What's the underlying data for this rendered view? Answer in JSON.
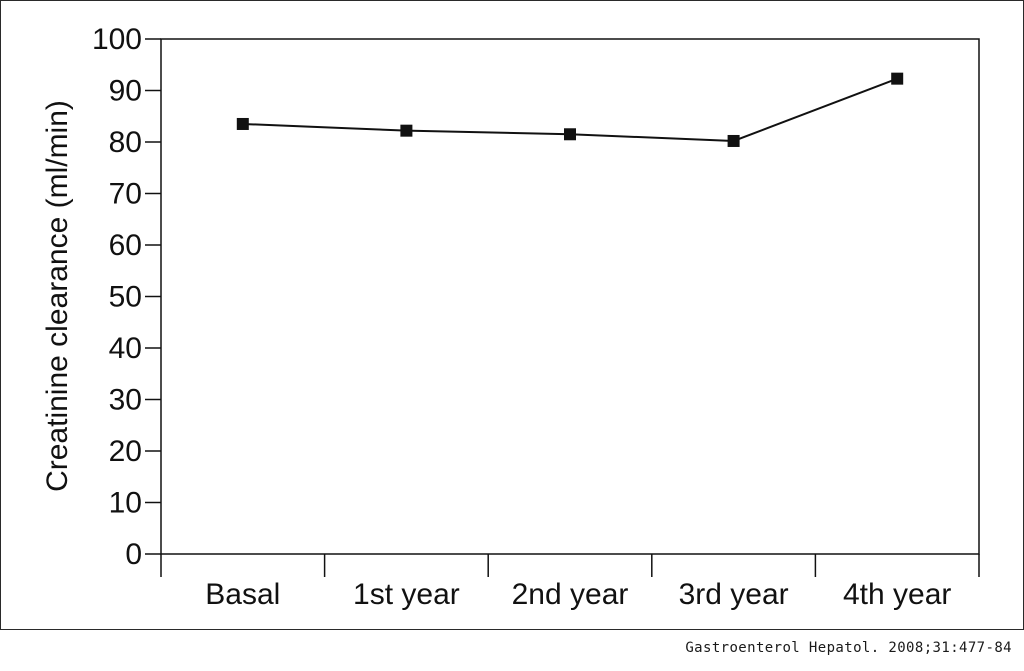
{
  "chart_data": {
    "type": "line",
    "categories": [
      "Basal",
      "1st year",
      "2nd year",
      "3rd year",
      "4th year"
    ],
    "series": [
      {
        "values": [
          83.5,
          82.2,
          81.5,
          80.2,
          92.3
        ]
      }
    ],
    "title": "",
    "xlabel": "",
    "ylabel": "Creatinine clearance (ml/min)",
    "ylim": [
      0,
      100
    ],
    "yticks": [
      0,
      10,
      20,
      30,
      40,
      50,
      60,
      70,
      80,
      90,
      100
    ],
    "grid": false,
    "legend": "none",
    "marker": "square",
    "line_color": "#111111"
  },
  "citation": "Gastroenterol Hepatol. 2008;31:477-84"
}
